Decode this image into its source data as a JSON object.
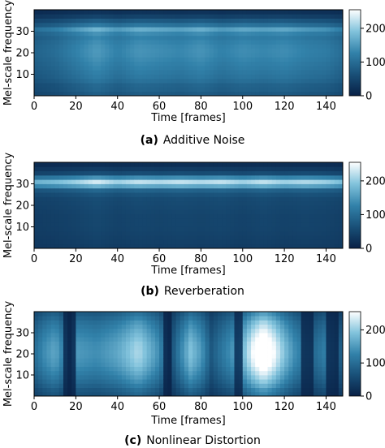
{
  "chart_data": [
    {
      "type": "heatmap",
      "caption": {
        "tag": "(a)",
        "text": "Additive Noise"
      },
      "xlabel": "Time [frames]",
      "ylabel": "Mel-scale frequency",
      "xlim": [
        0,
        148
      ],
      "ylim": [
        0,
        40
      ],
      "x_ticks": [
        0,
        20,
        40,
        60,
        80,
        100,
        120,
        140
      ],
      "y_ticks": [
        10,
        20,
        30
      ],
      "colorbar": {
        "range": [
          0,
          255
        ],
        "ticks": [
          0,
          100,
          200
        ]
      },
      "band_profile": {
        "freq": [
          0,
          2,
          5,
          8,
          12,
          16,
          20,
          24,
          28,
          31,
          33,
          36,
          38,
          40
        ],
        "level": [
          70,
          85,
          90,
          110,
          120,
          130,
          140,
          135,
          120,
          165,
          110,
          60,
          30,
          20
        ]
      },
      "time_profile": {
        "time": [
          0,
          10,
          20,
          30,
          40,
          50,
          60,
          70,
          80,
          90,
          100,
          110,
          120,
          130,
          140,
          148
        ],
        "level": [
          70,
          80,
          100,
          120,
          100,
          115,
          110,
          105,
          115,
          100,
          110,
          105,
          110,
          100,
          95,
          80
        ]
      }
    },
    {
      "type": "heatmap",
      "caption": {
        "tag": "(b)",
        "text": "Reverberation"
      },
      "xlabel": "Time [frames]",
      "ylabel": "Mel-scale frequency",
      "xlim": [
        0,
        148
      ],
      "ylim": [
        0,
        40
      ],
      "x_ticks": [
        0,
        20,
        40,
        60,
        80,
        100,
        120,
        140
      ],
      "y_ticks": [
        10,
        20,
        30
      ],
      "colorbar": {
        "range": [
          0,
          255
        ],
        "ticks": [
          0,
          100,
          200
        ]
      },
      "band_profile": {
        "freq": [
          0,
          5,
          10,
          15,
          20,
          24,
          27,
          29,
          30,
          31,
          33,
          35,
          38,
          40
        ],
        "level": [
          40,
          45,
          50,
          50,
          55,
          60,
          90,
          170,
          230,
          225,
          140,
          60,
          25,
          15
        ]
      },
      "time_profile": {
        "time": [
          0,
          10,
          20,
          30,
          40,
          50,
          60,
          70,
          80,
          90,
          100,
          110,
          120,
          130,
          140,
          148
        ],
        "level": [
          85,
          90,
          100,
          115,
          100,
          110,
          105,
          110,
          105,
          110,
          100,
          110,
          100,
          105,
          100,
          90
        ]
      }
    },
    {
      "type": "heatmap",
      "caption": {
        "tag": "(c)",
        "text": "Nonlinear Distortion"
      },
      "xlabel": "Time [frames]",
      "ylabel": "Mel-scale frequency",
      "xlim": [
        0,
        148
      ],
      "ylim": [
        0,
        40
      ],
      "x_ticks": [
        0,
        20,
        40,
        60,
        80,
        100,
        120,
        140
      ],
      "y_ticks": [
        10,
        20,
        30
      ],
      "colorbar": {
        "range": [
          0,
          255
        ],
        "ticks": [
          0,
          100,
          200
        ]
      },
      "band_profile": {
        "freq": [
          0,
          3,
          6,
          10,
          15,
          20,
          25,
          30,
          35,
          38,
          40
        ],
        "level": [
          60,
          70,
          90,
          110,
          130,
          140,
          135,
          120,
          100,
          80,
          70
        ]
      },
      "time_profile": {
        "time": [
          0,
          5,
          10,
          15,
          17,
          20,
          30,
          40,
          45,
          50,
          55,
          60,
          65,
          70,
          75,
          80,
          85,
          90,
          100,
          105,
          110,
          115,
          120,
          125,
          130,
          135,
          140,
          145,
          148
        ],
        "level": [
          80,
          110,
          130,
          90,
          40,
          120,
          110,
          130,
          150,
          170,
          140,
          110,
          40,
          100,
          150,
          120,
          60,
          90,
          140,
          200,
          240,
          200,
          150,
          110,
          90,
          80,
          100,
          70,
          60
        ]
      },
      "dark_columns": [
        17,
        64,
        98,
        131,
        143
      ]
    }
  ]
}
